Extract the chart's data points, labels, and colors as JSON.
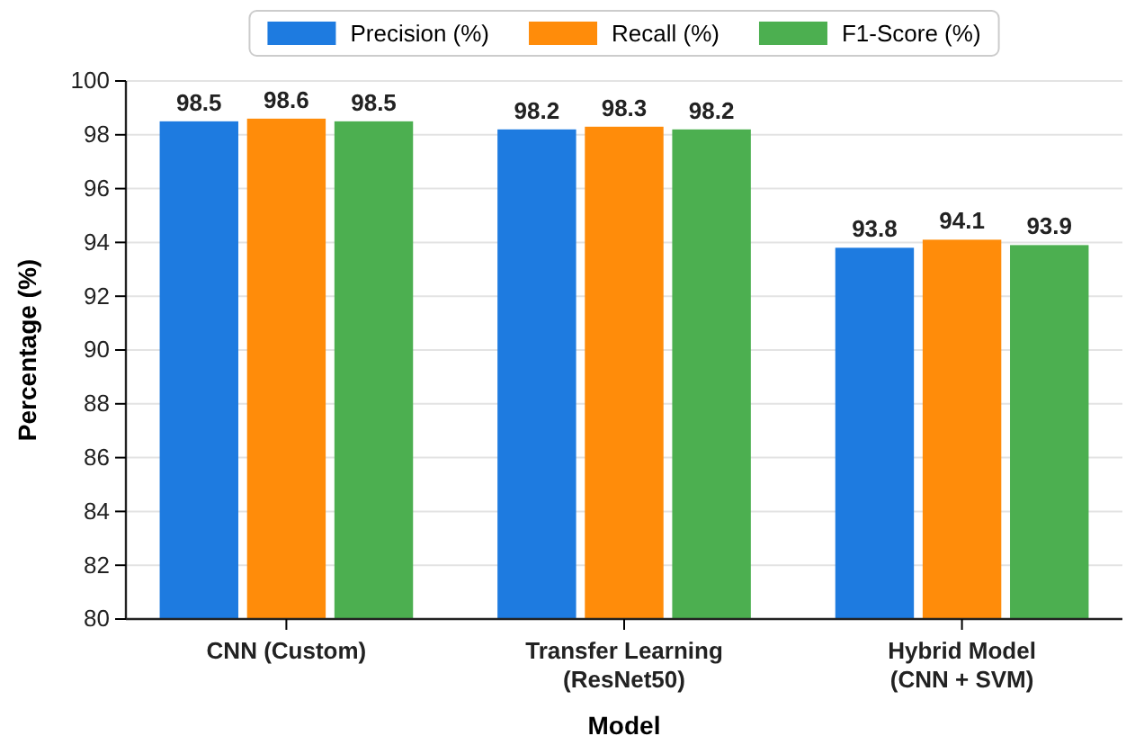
{
  "chart_data": {
    "type": "bar",
    "xlabel": "Model",
    "ylabel": "Percentage (%)",
    "categories": [
      "CNN (Custom)",
      "Transfer Learning\n(ResNet50)",
      "Hybrid Model\n(CNN + SVM)"
    ],
    "series": [
      {
        "name": "Precision (%)",
        "color": "#1e7be0",
        "values": [
          98.5,
          98.2,
          93.8
        ]
      },
      {
        "name": "Recall (%)",
        "color": "#ff8c0a",
        "values": [
          98.6,
          98.3,
          94.1
        ]
      },
      {
        "name": "F1-Score (%)",
        "color": "#4caf50",
        "values": [
          98.5,
          98.2,
          93.9
        ]
      }
    ],
    "ylim": [
      80,
      100
    ],
    "yticks": [
      80,
      82,
      84,
      86,
      88,
      90,
      92,
      94,
      96,
      98,
      100
    ],
    "grid": "y",
    "legend": "top",
    "data_labels": true
  }
}
